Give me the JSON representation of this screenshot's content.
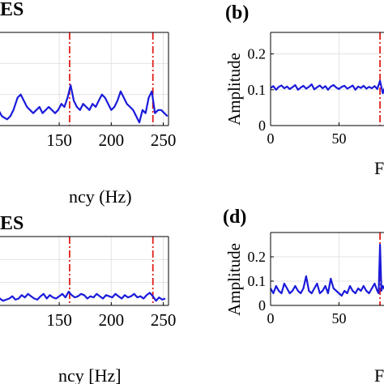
{
  "colors": {
    "signal": "#1a1adb",
    "marker": "#e0201c",
    "grid": "#e3e3e3",
    "axis": "#000000",
    "background": "#ffffff"
  },
  "chart_data": [
    {
      "panel_label": "ES",
      "type": "line",
      "xlabel": "ncy (Hz)",
      "ylabel": "",
      "xlim": [
        90,
        255
      ],
      "ylim": [
        0,
        0.3
      ],
      "xticks": [
        150,
        200,
        250
      ],
      "yticks": [],
      "grid": true,
      "marker_lines": [
        160,
        240
      ],
      "series": [
        {
          "x": [
            90,
            95,
            100,
            103,
            106,
            110,
            113,
            116,
            119,
            122,
            125,
            128,
            131,
            134,
            137,
            140,
            143,
            146,
            149,
            152,
            155,
            158,
            161,
            164,
            167,
            170,
            173,
            176,
            179,
            182,
            185,
            188,
            191,
            194,
            197,
            200,
            203,
            206,
            209,
            212,
            215,
            218,
            221,
            224,
            227,
            230,
            233,
            236,
            239,
            242,
            245,
            248,
            251,
            254
          ],
          "y": [
            0.06,
            0.03,
            0.02,
            0.03,
            0.05,
            0.09,
            0.1,
            0.08,
            0.06,
            0.05,
            0.04,
            0.05,
            0.06,
            0.04,
            0.05,
            0.06,
            0.05,
            0.04,
            0.05,
            0.07,
            0.06,
            0.09,
            0.13,
            0.08,
            0.06,
            0.05,
            0.07,
            0.06,
            0.05,
            0.07,
            0.06,
            0.08,
            0.1,
            0.09,
            0.07,
            0.05,
            0.06,
            0.08,
            0.11,
            0.09,
            0.07,
            0.06,
            0.05,
            0.03,
            0.01,
            0.05,
            0.04,
            0.09,
            0.11,
            0.04,
            0.05,
            0.05,
            0.04,
            0.03
          ]
        }
      ]
    },
    {
      "panel_label": "(b)",
      "type": "line",
      "xlabel": "F",
      "ylabel": "Amplitude",
      "xlim": [
        0,
        90
      ],
      "ylim": [
        0,
        0.26
      ],
      "xticks": [
        0,
        50
      ],
      "yticks": [
        0,
        0.1,
        0.2
      ],
      "grid": true,
      "marker_lines": [
        80
      ],
      "series": [
        {
          "x": [
            0,
            2,
            4,
            6,
            8,
            10,
            12,
            14,
            16,
            18,
            20,
            22,
            24,
            26,
            28,
            30,
            32,
            34,
            36,
            38,
            40,
            42,
            44,
            46,
            48,
            50,
            52,
            54,
            56,
            58,
            60,
            62,
            64,
            66,
            68,
            70,
            72,
            74,
            76,
            78,
            80,
            82,
            84,
            86,
            88,
            90
          ],
          "y": [
            0.105,
            0.11,
            0.1,
            0.108,
            0.112,
            0.104,
            0.109,
            0.102,
            0.107,
            0.113,
            0.1,
            0.106,
            0.111,
            0.103,
            0.108,
            0.115,
            0.101,
            0.107,
            0.112,
            0.104,
            0.11,
            0.1,
            0.109,
            0.113,
            0.106,
            0.102,
            0.108,
            0.111,
            0.103,
            0.107,
            0.112,
            0.1,
            0.109,
            0.105,
            0.111,
            0.103,
            0.108,
            0.104,
            0.11,
            0.102,
            0.125,
            0.09,
            0.112,
            0.1,
            0.108,
            0.104
          ]
        }
      ]
    },
    {
      "panel_label": "ES",
      "type": "line",
      "xlabel": "ncy [Hz]",
      "ylabel": "",
      "xlim": [
        90,
        255
      ],
      "ylim": [
        0,
        0.3
      ],
      "xticks": [
        150,
        200,
        250
      ],
      "yticks": [],
      "grid": true,
      "marker_lines": [
        160,
        240
      ],
      "series": [
        {
          "x": [
            90,
            93,
            96,
            99,
            102,
            105,
            108,
            111,
            114,
            117,
            120,
            123,
            126,
            129,
            132,
            135,
            138,
            141,
            144,
            147,
            150,
            153,
            156,
            159,
            162,
            165,
            168,
            171,
            174,
            177,
            180,
            183,
            186,
            189,
            192,
            195,
            198,
            201,
            204,
            207,
            210,
            213,
            216,
            219,
            222,
            225,
            228,
            231,
            234,
            237,
            240,
            243,
            246,
            249,
            252
          ],
          "y": [
            0.02,
            0.03,
            0.02,
            0.025,
            0.03,
            0.04,
            0.025,
            0.03,
            0.045,
            0.035,
            0.05,
            0.04,
            0.03,
            0.025,
            0.04,
            0.05,
            0.03,
            0.045,
            0.035,
            0.03,
            0.04,
            0.05,
            0.035,
            0.06,
            0.045,
            0.035,
            0.04,
            0.05,
            0.045,
            0.03,
            0.04,
            0.035,
            0.05,
            0.04,
            0.03,
            0.045,
            0.04,
            0.035,
            0.05,
            0.04,
            0.03,
            0.045,
            0.035,
            0.04,
            0.05,
            0.035,
            0.04,
            0.03,
            0.045,
            0.055,
            0.04,
            0.02,
            0.035,
            0.025,
            0.03
          ]
        }
      ]
    },
    {
      "panel_label": "(d)",
      "type": "line",
      "xlabel": "F",
      "ylabel": "Amplitude",
      "xlim": [
        0,
        90
      ],
      "ylim": [
        0,
        0.3
      ],
      "xticks": [
        0,
        50
      ],
      "yticks": [
        0,
        0.1,
        0.2
      ],
      "grid": true,
      "marker_lines": [
        80
      ],
      "series": [
        {
          "x": [
            0,
            2,
            4,
            6,
            8,
            10,
            12,
            14,
            16,
            18,
            20,
            22,
            24,
            26,
            28,
            30,
            32,
            34,
            36,
            38,
            40,
            42,
            44,
            46,
            48,
            50,
            52,
            54,
            56,
            58,
            60,
            62,
            64,
            66,
            68,
            70,
            72,
            74,
            76,
            78,
            79,
            80,
            81,
            82,
            84,
            86,
            88,
            90
          ],
          "y": [
            0.07,
            0.05,
            0.08,
            0.06,
            0.05,
            0.09,
            0.07,
            0.05,
            0.06,
            0.08,
            0.06,
            0.05,
            0.07,
            0.12,
            0.06,
            0.05,
            0.07,
            0.09,
            0.05,
            0.06,
            0.08,
            0.05,
            0.11,
            0.07,
            0.06,
            0.05,
            0.04,
            0.06,
            0.05,
            0.08,
            0.06,
            0.05,
            0.07,
            0.06,
            0.08,
            0.06,
            0.05,
            0.07,
            0.09,
            0.06,
            0.05,
            0.25,
            0.06,
            0.08,
            0.06,
            0.09,
            0.07,
            0.06
          ]
        }
      ]
    }
  ]
}
